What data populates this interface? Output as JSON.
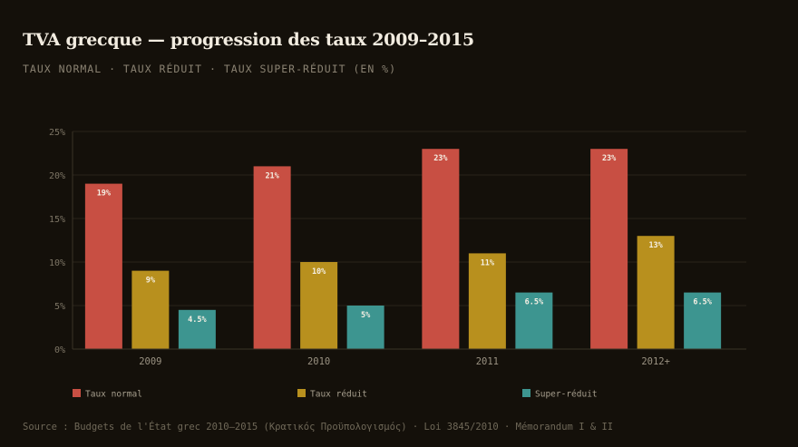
{
  "header": {
    "title": "TVA grecque — progression des taux 2009–2015",
    "subtitle": "TAUX NORMAL · TAUX RÉDUIT · TAUX SUPER-RÉDUIT (EN %)"
  },
  "footer": {
    "source": "Source : Budgets de l'État grec 2010–2015 (Κρατικός Προϋπολογισμός) · Loi 3845/2010 · Mémorandum I & II"
  },
  "chart_data": {
    "type": "bar",
    "title": "TVA grecque — progression des taux 2009–2015",
    "subtitle": "TAUX NORMAL · TAUX RÉDUIT · TAUX SUPER-RÉDUIT (EN %)",
    "xlabel": "",
    "ylabel": "",
    "categories": [
      "2009",
      "2010",
      "2011",
      "2012+"
    ],
    "series": [
      {
        "name": "Taux normal",
        "color": "#c84f43",
        "values": [
          19,
          21,
          23,
          23
        ],
        "labels": [
          "19%",
          "21%",
          "23%",
          "23%"
        ]
      },
      {
        "name": "Taux réduit",
        "color": "#b8901e",
        "values": [
          9,
          10,
          11,
          13
        ],
        "labels": [
          "9%",
          "10%",
          "11%",
          "13%"
        ]
      },
      {
        "name": "Super-réduit",
        "color": "#3d9590",
        "values": [
          4.5,
          5,
          6.5,
          6.5
        ],
        "labels": [
          "4.5%",
          "5%",
          "6.5%",
          "6.5%"
        ]
      }
    ],
    "ylim": [
      0,
      25
    ],
    "yticks": [
      0,
      5,
      10,
      15,
      20,
      25
    ],
    "ytick_labels": [
      "0%",
      "5%",
      "10%",
      "15%",
      "20%",
      "25%"
    ],
    "grid": true,
    "legend_position": "bottom"
  }
}
